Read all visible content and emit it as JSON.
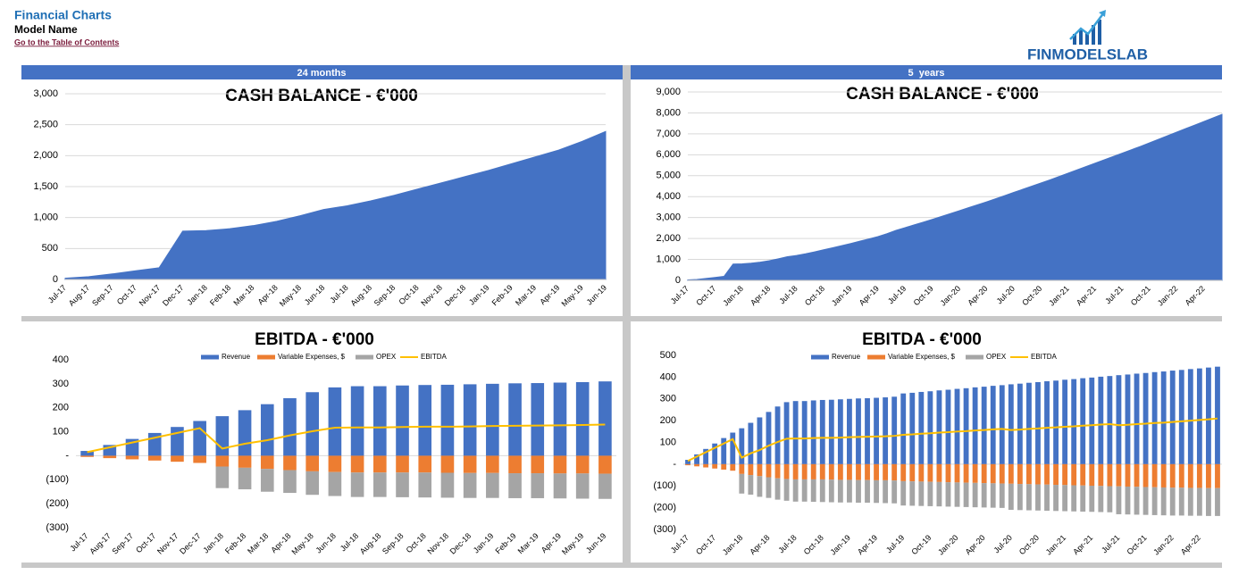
{
  "header": {
    "title": "Financial Charts",
    "subtitle": "Model Name",
    "link": "Go to the Table of Contents",
    "logo": "FINMODELSLAB"
  },
  "panels": [
    "24 months",
    "5  years"
  ],
  "chart_data": [
    {
      "type": "area",
      "title": "CASH BALANCE - €'000",
      "color": "#4472c4",
      "grid": true,
      "categories": [
        "Jul-17",
        "Aug-17",
        "Sep-17",
        "Oct-17",
        "Nov-17",
        "Dec-17",
        "Jan-18",
        "Feb-18",
        "Mar-18",
        "Apr-18",
        "May-18",
        "Jun-18",
        "Jul-18",
        "Aug-18",
        "Sep-18",
        "Oct-18",
        "Nov-18",
        "Dec-18",
        "Jan-19",
        "Feb-19",
        "Mar-19",
        "Apr-19",
        "May-19",
        "Jun-19"
      ],
      "values": [
        20,
        45,
        90,
        140,
        190,
        780,
        790,
        820,
        870,
        940,
        1030,
        1130,
        1190,
        1270,
        1360,
        1460,
        1560,
        1660,
        1760,
        1870,
        1980,
        2090,
        2230,
        2390
      ],
      "ylim": [
        0,
        3000
      ],
      "yticks": [
        0,
        500,
        {
          "value": 1000,
          "label": "1,000"
        },
        {
          "value": 1500,
          "label": "1,500"
        },
        {
          "value": 2000,
          "label": "2,000"
        },
        {
          "value": 2500,
          "label": "2,500"
        },
        {
          "value": 3000,
          "label": "3,000"
        }
      ]
    },
    {
      "type": "area",
      "title": "CASH BALANCE - €'000",
      "color": "#4472c4",
      "grid": true,
      "categories": [
        "Jul-17",
        null,
        null,
        "Oct-17",
        null,
        null,
        "Jan-18",
        null,
        null,
        "Apr-18",
        null,
        null,
        "Jul-18",
        null,
        null,
        "Oct-18",
        null,
        null,
        "Jan-19",
        null,
        null,
        "Apr-19",
        null,
        null,
        "Jul-19",
        null,
        null,
        "Oct-19",
        null,
        null,
        "Jan-20",
        null,
        null,
        "Apr-20",
        null,
        null,
        "Jul-20",
        null,
        null,
        "Oct-20",
        null,
        null,
        "Jan-21",
        null,
        null,
        "Apr-21",
        null,
        null,
        "Jul-21",
        null,
        null,
        "Oct-21",
        null,
        null,
        "Jan-22",
        null,
        null,
        "Apr-22",
        null,
        null
      ],
      "values": [
        20,
        45,
        90,
        140,
        190,
        780,
        790,
        820,
        870,
        940,
        1030,
        1130,
        1190,
        1270,
        1360,
        1460,
        1560,
        1660,
        1760,
        1870,
        1980,
        2090,
        2230,
        2390,
        2520,
        2650,
        2780,
        2910,
        3050,
        3190,
        3330,
        3470,
        3610,
        3750,
        3900,
        4050,
        4200,
        4350,
        4500,
        4650,
        4800,
        4960,
        5120,
        5280,
        5440,
        5600,
        5760,
        5920,
        6080,
        6240,
        6400,
        6570,
        6740,
        6910,
        7080,
        7250,
        7420,
        7590,
        7760,
        7930
      ],
      "ylim": [
        0,
        9000
      ],
      "yticks": [
        0,
        {
          "value": 1000,
          "label": "1,000"
        },
        {
          "value": 2000,
          "label": "2,000"
        },
        {
          "value": 3000,
          "label": "3,000"
        },
        {
          "value": 4000,
          "label": "4,000"
        },
        {
          "value": 5000,
          "label": "5,000"
        },
        {
          "value": 6000,
          "label": "6,000"
        },
        {
          "value": 7000,
          "label": "7,000"
        },
        {
          "value": 8000,
          "label": "8,000"
        },
        {
          "value": 9000,
          "label": "9,000"
        }
      ]
    },
    {
      "type": "bar",
      "stacked": true,
      "title": "EBITDA - €'000",
      "grid": false,
      "categories": [
        "Jul-17",
        "Aug-17",
        "Sep-17",
        "Oct-17",
        "Nov-17",
        "Dec-17",
        "Jan-18",
        "Feb-18",
        "Mar-18",
        "Apr-18",
        "May-18",
        "Jun-18",
        "Jul-18",
        "Aug-18",
        "Sep-18",
        "Oct-18",
        "Nov-18",
        "Dec-18",
        "Jan-19",
        "Feb-19",
        "Mar-19",
        "Apr-19",
        "May-19",
        "Jun-19"
      ],
      "series": [
        {
          "name": "Revenue",
          "color": "#4472c4",
          "values": [
            20,
            45,
            70,
            95,
            120,
            145,
            165,
            190,
            215,
            240,
            265,
            285,
            290,
            290,
            293,
            295,
            296,
            298,
            300,
            302,
            303,
            305,
            307,
            310
          ]
        },
        {
          "name": "Variable Expenses, $",
          "color": "#ed7d31",
          "values": [
            -5,
            -10,
            -15,
            -20,
            -25,
            -30,
            -45,
            -50,
            -55,
            -60,
            -65,
            -68,
            -70,
            -70,
            -70,
            -70,
            -71,
            -72,
            -72,
            -73,
            -73,
            -74,
            -74,
            -75
          ]
        },
        {
          "name": "OPEX",
          "color": "#a5a5a5",
          "values": [
            0,
            0,
            0,
            0,
            0,
            0,
            -90,
            -90,
            -95,
            -95,
            -98,
            -100,
            -102,
            -102,
            -103,
            -104,
            -104,
            -104,
            -104,
            -104,
            -104,
            -104,
            -105,
            -105
          ]
        },
        {
          "name": "EBITDA",
          "color": "#ffc000",
          "type": "line",
          "values": [
            15,
            35,
            55,
            75,
            95,
            115,
            30,
            50,
            65,
            85,
            102,
            117,
            118,
            118,
            120,
            121,
            121,
            122,
            124,
            125,
            126,
            127,
            128,
            130
          ]
        }
      ],
      "ylim": [
        -300,
        400
      ],
      "yticks": [
        {
          "value": -300,
          "label": "(300)"
        },
        {
          "value": -200,
          "label": "(200)"
        },
        {
          "value": -100,
          "label": "(100)"
        },
        {
          "value": 0,
          "label": "-"
        },
        100,
        200,
        300,
        400
      ]
    },
    {
      "type": "bar",
      "stacked": true,
      "title": "EBITDA - €'000",
      "grid": false,
      "categories": [
        "Jul-17",
        null,
        null,
        "Oct-17",
        null,
        null,
        "Jan-18",
        null,
        null,
        "Apr-18",
        null,
        null,
        "Jul-18",
        null,
        null,
        "Oct-18",
        null,
        null,
        "Jan-19",
        null,
        null,
        "Apr-19",
        null,
        null,
        "Jul-19",
        null,
        null,
        "Oct-19",
        null,
        null,
        "Jan-20",
        null,
        null,
        "Apr-20",
        null,
        null,
        "Jul-20",
        null,
        null,
        "Oct-20",
        null,
        null,
        "Jan-21",
        null,
        null,
        "Apr-21",
        null,
        null,
        "Jul-21",
        null,
        null,
        "Oct-21",
        null,
        null,
        "Jan-22",
        null,
        null,
        "Apr-22",
        null,
        null
      ],
      "series": [
        {
          "name": "Revenue",
          "color": "#4472c4",
          "values": [
            20,
            45,
            70,
            95,
            120,
            145,
            165,
            190,
            215,
            240,
            265,
            285,
            290,
            290,
            293,
            295,
            296,
            298,
            300,
            302,
            303,
            305,
            307,
            310,
            325,
            328,
            332,
            335,
            339,
            342,
            346,
            349,
            353,
            356,
            360,
            363,
            367,
            370,
            374,
            377,
            381,
            384,
            388,
            391,
            395,
            398,
            402,
            405,
            409,
            412,
            416,
            419,
            423,
            426,
            430,
            433,
            437,
            440,
            444,
            448
          ]
        },
        {
          "name": "Variable Expenses, $",
          "color": "#ed7d31",
          "values": [
            -5,
            -10,
            -15,
            -20,
            -25,
            -30,
            -45,
            -50,
            -55,
            -60,
            -65,
            -68,
            -70,
            -70,
            -70,
            -70,
            -71,
            -72,
            -72,
            -73,
            -73,
            -74,
            -74,
            -75,
            -78,
            -79,
            -80,
            -81,
            -82,
            -83,
            -84,
            -85,
            -86,
            -87,
            -88,
            -89,
            -90,
            -91,
            -92,
            -93,
            -94,
            -95,
            -96,
            -97,
            -98,
            -99,
            -100,
            -101,
            -102,
            -103,
            -104,
            -105,
            -106,
            -107,
            -108,
            -108,
            -109,
            -109,
            -110,
            -110
          ]
        },
        {
          "name": "OPEX",
          "color": "#a5a5a5",
          "values": [
            0,
            0,
            0,
            0,
            0,
            0,
            -90,
            -90,
            -95,
            -95,
            -98,
            -100,
            -102,
            -102,
            -103,
            -104,
            -104,
            -104,
            -104,
            -104,
            -104,
            -104,
            -105,
            -105,
            -112,
            -112,
            -112,
            -112,
            -112,
            -112,
            -112,
            -112,
            -112,
            -112,
            -112,
            -112,
            -120,
            -120,
            -120,
            -120,
            -120,
            -120,
            -120,
            -120,
            -120,
            -120,
            -120,
            -120,
            -128,
            -128,
            -128,
            -128,
            -128,
            -128,
            -128,
            -128,
            -128,
            -128,
            -128,
            -128
          ]
        },
        {
          "name": "EBITDA",
          "color": "#ffc000",
          "type": "line",
          "values": [
            15,
            35,
            55,
            75,
            95,
            115,
            30,
            50,
            65,
            85,
            102,
            117,
            118,
            118,
            120,
            121,
            121,
            122,
            124,
            125,
            126,
            127,
            128,
            130,
            135,
            137,
            140,
            142,
            145,
            147,
            150,
            152,
            155,
            157,
            160,
            162,
            157,
            159,
            162,
            164,
            167,
            169,
            172,
            174,
            177,
            179,
            182,
            184,
            179,
            181,
            184,
            186,
            189,
            191,
            194,
            197,
            200,
            203,
            206,
            210
          ]
        }
      ],
      "ylim": [
        -300,
        500
      ],
      "yticks": [
        {
          "value": -300,
          "label": "(300)"
        },
        {
          "value": -200,
          "label": "(200)"
        },
        {
          "value": -100,
          "label": "(100)"
        },
        {
          "value": 0,
          "label": "-"
        },
        100,
        200,
        300,
        400,
        500
      ]
    }
  ]
}
